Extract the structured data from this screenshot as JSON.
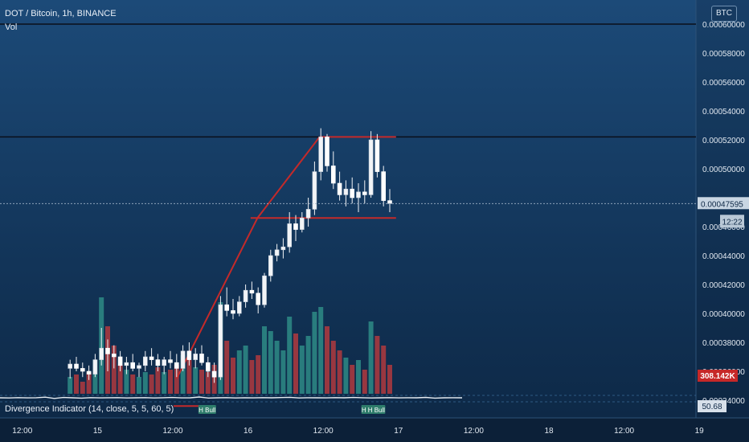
{
  "legend": {
    "symbol": "DOT / Bitcoin, 1h, BINANCE",
    "volume_label": "Vol"
  },
  "indicator": {
    "label": "Divergence Indicator (14, close, 5, 5, 60, 5)",
    "value": "50.68",
    "markers": [
      "H Bull",
      "H Bull",
      "H Bull"
    ]
  },
  "currency": "BTC",
  "price_badges": {
    "last_price": "0.00047595",
    "countdown": "12:22",
    "volume": "308.142K"
  },
  "colors": {
    "bull": "#2e8b86",
    "bear": "#b03a3e",
    "candle_body": "#f2f4f7",
    "trendline": "#c42a2a",
    "level_line": "#0a0f1a",
    "divergence": "#e6ecf2",
    "volume_badge": "#c62828"
  },
  "chart_data": {
    "type": "candlestick",
    "price_axis": {
      "ticks": [
        "0.00058000",
        "0.00056000",
        "0.00054000",
        "0.00052000",
        "0.00050000",
        "0.00044000",
        "0.00042000",
        "0.00040000",
        "0.00038000",
        "0.00036000",
        "0.00034000"
      ],
      "tick_values": [
        0.00058,
        0.00056,
        0.00054,
        0.00052,
        0.0005,
        0.00044,
        0.00042,
        0.0004,
        0.00038,
        0.00036,
        0.00034
      ],
      "top_cut": "0.00060000",
      "partial": "0.00046000"
    },
    "time_axis": {
      "ticks": [
        "12:00",
        "15",
        "12:00",
        "16",
        "12:00",
        "17",
        "12:00",
        "18",
        "12:00",
        "19"
      ],
      "tick_hours": [
        -24,
        -12,
        0,
        12,
        24,
        36,
        48,
        60,
        72,
        84
      ]
    },
    "horizontal_levels": [
      0.0006,
      0.000522
    ],
    "trendlines": [
      {
        "name": "rise",
        "points": [
          [
            1,
            0.000355
          ],
          [
            13.9,
            0.000466
          ],
          [
            23.8,
            0.000522
          ]
        ]
      },
      {
        "name": "resistance",
        "points": [
          [
            23.8,
            0.000522
          ],
          [
            36,
            0.000522
          ]
        ]
      },
      {
        "name": "support",
        "points": [
          [
            0.5,
            0.000336
          ],
          [
            7,
            0.000336
          ]
        ]
      },
      {
        "name": "support-upper",
        "points": [
          [
            12.8,
            0.000466
          ],
          [
            36,
            0.000466
          ]
        ]
      }
    ],
    "candles": {
      "columns": [
        "h",
        "open",
        "high",
        "low",
        "close",
        "volume"
      ],
      "rows": [
        [
          -16,
          0.000362,
          0.000368,
          0.000355,
          0.000365,
          7
        ],
        [
          -15,
          0.000365,
          0.00037,
          0.00036,
          0.000362,
          8
        ],
        [
          -14,
          0.000362,
          0.000366,
          0.000356,
          0.00036,
          5
        ],
        [
          -13,
          0.00036,
          0.000364,
          0.000354,
          0.000358,
          9
        ],
        [
          -12,
          0.000358,
          0.000372,
          0.000356,
          0.000368,
          14
        ],
        [
          -11,
          0.000368,
          0.00039,
          0.000364,
          0.000376,
          40
        ],
        [
          -10,
          0.000376,
          0.000382,
          0.00036,
          0.000372,
          28
        ],
        [
          -9,
          0.000372,
          0.000378,
          0.000362,
          0.00037,
          20
        ],
        [
          -8,
          0.00037,
          0.000374,
          0.00036,
          0.000364,
          12
        ],
        [
          -7,
          0.000364,
          0.00037,
          0.000358,
          0.000366,
          10
        ],
        [
          -6,
          0.000366,
          0.000372,
          0.00036,
          0.000362,
          8
        ],
        [
          -5,
          0.000362,
          0.000366,
          0.000356,
          0.000364,
          7
        ],
        [
          -4,
          0.000364,
          0.000374,
          0.00036,
          0.00037,
          9
        ],
        [
          -3,
          0.00037,
          0.000376,
          0.000364,
          0.000368,
          8
        ],
        [
          -2,
          0.000368,
          0.000372,
          0.00036,
          0.000364,
          11
        ],
        [
          -1,
          0.000364,
          0.00037,
          0.000358,
          0.000368,
          9
        ],
        [
          0,
          0.000368,
          0.000374,
          0.000362,
          0.000366,
          10
        ],
        [
          1,
          0.000366,
          0.000372,
          0.000356,
          0.000362,
          12
        ],
        [
          2,
          0.000362,
          0.000378,
          0.00036,
          0.000374,
          16
        ],
        [
          3,
          0.000374,
          0.00038,
          0.000364,
          0.000368,
          14
        ],
        [
          4,
          0.000368,
          0.000376,
          0.000362,
          0.000372,
          11
        ],
        [
          5,
          0.000372,
          0.000378,
          0.000364,
          0.000366,
          10
        ],
        [
          6,
          0.000366,
          0.00037,
          0.000356,
          0.00036,
          9
        ],
        [
          7,
          0.00036,
          0.000366,
          0.000352,
          0.000356,
          12
        ],
        [
          8,
          0.000356,
          0.000412,
          0.000354,
          0.000406,
          38
        ],
        [
          9,
          0.000406,
          0.000418,
          0.000398,
          0.000402,
          22
        ],
        [
          10,
          0.000402,
          0.00041,
          0.000396,
          0.0004,
          15
        ],
        [
          11,
          0.0004,
          0.000412,
          0.000398,
          0.000408,
          18
        ],
        [
          12,
          0.000408,
          0.00042,
          0.000404,
          0.000416,
          20
        ],
        [
          13,
          0.000416,
          0.000422,
          0.00041,
          0.000414,
          14
        ],
        [
          14,
          0.000414,
          0.000418,
          0.0004,
          0.000406,
          16
        ],
        [
          15,
          0.000406,
          0.000428,
          0.000404,
          0.000426,
          28
        ],
        [
          16,
          0.000426,
          0.000444,
          0.000422,
          0.00044,
          26
        ],
        [
          17,
          0.00044,
          0.000448,
          0.000436,
          0.000444,
          22
        ],
        [
          18,
          0.000444,
          0.000452,
          0.000438,
          0.000446,
          18
        ],
        [
          19,
          0.000446,
          0.00047,
          0.000442,
          0.000462,
          32
        ],
        [
          20,
          0.000462,
          0.000468,
          0.00045,
          0.000458,
          25
        ],
        [
          21,
          0.000458,
          0.00047,
          0.000456,
          0.000466,
          20
        ],
        [
          22,
          0.000466,
          0.00048,
          0.00046,
          0.000472,
          24
        ],
        [
          23,
          0.000472,
          0.000505,
          0.000468,
          0.000498,
          34
        ],
        [
          24,
          0.000498,
          0.000528,
          0.000492,
          0.000522,
          36
        ],
        [
          25,
          0.000522,
          0.000524,
          0.000498,
          0.000502,
          28
        ],
        [
          26,
          0.000502,
          0.000512,
          0.000486,
          0.00049,
          22
        ],
        [
          27,
          0.00049,
          0.000498,
          0.000478,
          0.000482,
          18
        ],
        [
          28,
          0.000482,
          0.000492,
          0.000474,
          0.000486,
          15
        ],
        [
          29,
          0.000486,
          0.000494,
          0.000476,
          0.00048,
          12
        ],
        [
          30,
          0.00048,
          0.00049,
          0.00047,
          0.000484,
          14
        ],
        [
          31,
          0.000484,
          0.000492,
          0.000476,
          0.000482,
          10
        ],
        [
          32,
          0.000482,
          0.000526,
          0.00048,
          0.00052,
          30
        ],
        [
          33,
          0.00052,
          0.000524,
          0.000494,
          0.000498,
          24
        ],
        [
          34,
          0.000498,
          0.000502,
          0.000474,
          0.000478,
          20
        ],
        [
          35,
          0.000478,
          0.000486,
          0.00047,
          0.000476,
          12
        ]
      ]
    },
    "divergence_levels": [
      0.5,
      0.48,
      0.52,
      0.49,
      0.51,
      0.6,
      0.4,
      0.55,
      0.5,
      0.45,
      0.52,
      0.49,
      0.51,
      0.53,
      0.48,
      0.5,
      0.52,
      0.47,
      0.51,
      0.55,
      0.49,
      0.5,
      0.62,
      0.46,
      0.5,
      0.53,
      0.48,
      0.51,
      0.49,
      0.52,
      0.5,
      0.54,
      0.58,
      0.48,
      0.51,
      0.5,
      0.49,
      0.52,
      0.5,
      0.55,
      0.51,
      0.48,
      0.5,
      0.52,
      0.49,
      0.51,
      0.5,
      0.56,
      0.45,
      0.5,
      0.51,
      0.5
    ],
    "marker_hours": [
      6,
      32,
      33
    ]
  }
}
